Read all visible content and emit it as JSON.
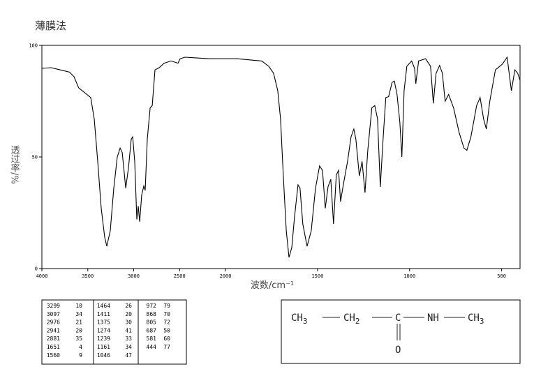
{
  "header": {
    "title": "薄膜法"
  },
  "chart_data": {
    "type": "line",
    "x_label": "波数/cm⁻¹",
    "y_label": "透过率/%",
    "x": [
      4000,
      3900,
      3800,
      3700,
      3650,
      3600,
      3468,
      3430,
      3392,
      3354,
      3316,
      3293,
      3255,
      3217,
      3179,
      3148,
      3125,
      3087,
      3057,
      3027,
      3011,
      2989,
      2966,
      2951,
      2935,
      2913,
      2890,
      2875,
      2852,
      2821,
      2798,
      2768,
      2722,
      2669,
      2593,
      2517,
      2494,
      2441,
      2327,
      2175,
      2023,
      1936,
      1860,
      1803,
      1765,
      1739,
      1716,
      1701,
      1686,
      1670,
      1655,
      1640,
      1625,
      1606,
      1595,
      1580,
      1557,
      1534,
      1511,
      1489,
      1473,
      1458,
      1443,
      1428,
      1413,
      1398,
      1386,
      1375,
      1360,
      1337,
      1318,
      1303,
      1292,
      1273,
      1258,
      1242,
      1227,
      1205,
      1189,
      1174,
      1159,
      1144,
      1129,
      1114,
      1095,
      1083,
      1068,
      1053,
      1042,
      1030,
      1015,
      989,
      973,
      966,
      951,
      913,
      886,
      871,
      856,
      837,
      822,
      807,
      788,
      761,
      731,
      705,
      689,
      667,
      636,
      617,
      598,
      583,
      564,
      534,
      496,
      470,
      447,
      428,
      413,
      400
    ],
    "values": [
      89.7,
      90,
      89,
      88,
      86,
      81,
      76.6,
      67,
      48,
      27,
      14,
      10,
      17,
      36,
      50,
      54,
      52,
      36,
      45,
      58,
      59,
      48,
      22,
      28,
      21,
      33,
      37,
      35,
      58,
      72,
      73,
      89,
      90,
      92,
      93,
      92,
      94,
      94.7,
      94.4,
      94,
      94,
      94,
      93.4,
      93,
      90.6,
      87.5,
      79.7,
      67,
      42,
      17,
      5,
      9.4,
      23,
      37.5,
      36,
      20,
      10,
      17,
      36,
      46,
      44,
      27,
      36.6,
      40,
      20,
      42,
      44,
      30,
      37.5,
      48,
      59,
      62.5,
      58,
      41.5,
      48,
      34,
      53,
      72,
      73,
      67,
      36.6,
      58,
      76.6,
      77,
      83.4,
      84,
      78,
      65.6,
      50,
      79.7,
      90.6,
      93,
      89.7,
      82.8,
      93,
      94,
      90.6,
      74,
      87.5,
      91,
      87.5,
      75,
      78,
      72,
      61,
      54,
      53,
      59,
      73,
      76.6,
      67,
      62.5,
      75,
      89,
      91.6,
      94.7,
      79.7,
      89,
      87.5,
      84.4
    ],
    "color": "#000000",
    "xlim": [
      4000,
      400
    ],
    "xbreak": 2000,
    "ylim": [
      0,
      100
    ],
    "xticks": [
      4000,
      3500,
      3000,
      2500,
      2000,
      1500,
      1000,
      500
    ],
    "yticks": [
      0,
      50,
      100
    ]
  },
  "peak_table": {
    "rows": [
      [
        3299,
        10,
        1464,
        26,
        972,
        79
      ],
      [
        3097,
        34,
        1411,
        20,
        868,
        70
      ],
      [
        2976,
        21,
        1375,
        30,
        805,
        72
      ],
      [
        2941,
        20,
        1274,
        41,
        687,
        50
      ],
      [
        2881,
        35,
        1239,
        33,
        581,
        60
      ],
      [
        1651,
        4,
        1161,
        34,
        444,
        77
      ],
      [
        1560,
        9,
        1046,
        47
      ]
    ]
  },
  "structure": {
    "groups": [
      {
        "text": "CH",
        "sub": "3"
      },
      {
        "text": "CH",
        "sub": "2"
      },
      {
        "text": "C"
      },
      {
        "text": "NH"
      },
      {
        "text": "CH",
        "sub": "3"
      }
    ],
    "carbonyl": "O"
  }
}
